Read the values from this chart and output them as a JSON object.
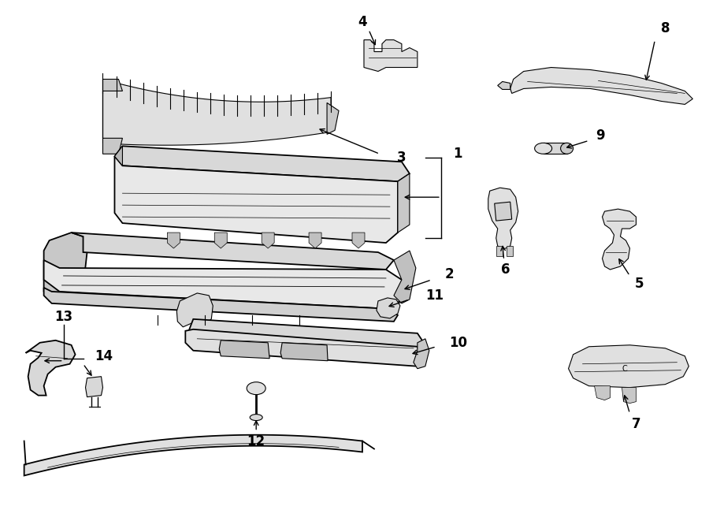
{
  "bg_color": "#ffffff",
  "line_color": "#000000",
  "fig_width": 9.0,
  "fig_height": 6.61,
  "lw_main": 1.3,
  "lw_thin": 0.8,
  "label_fs": 11,
  "gray1": "#d8d8d8",
  "gray2": "#c8c8c8",
  "gray3": "#e8e8e8"
}
